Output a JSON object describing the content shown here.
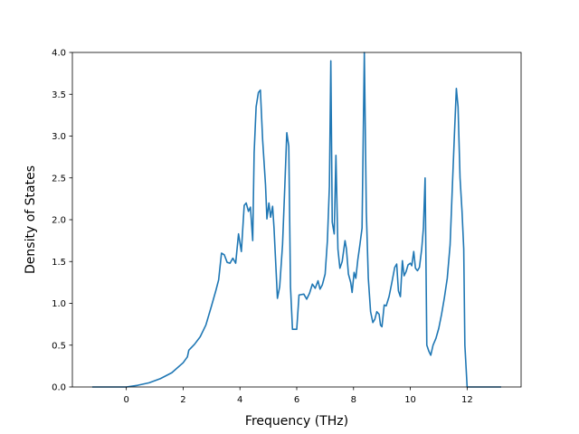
{
  "chart_data": {
    "type": "line",
    "title": "",
    "xlabel": "Frequency (THz)",
    "ylabel": "Density of States",
    "xlim": [
      -1.9,
      13.9
    ],
    "ylim": [
      0.0,
      4.0
    ],
    "x_ticks": [
      0,
      2,
      4,
      6,
      8,
      10,
      12
    ],
    "y_ticks": [
      0.0,
      0.5,
      1.0,
      1.5,
      2.0,
      2.5,
      3.0,
      3.5,
      4.0
    ],
    "x_tick_labels": [
      "0",
      "2",
      "4",
      "6",
      "8",
      "10",
      "12"
    ],
    "y_tick_labels": [
      "0.0",
      "0.5",
      "1.0",
      "1.5",
      "2.0",
      "2.5",
      "3.0",
      "3.5",
      "4.0"
    ],
    "grid": false,
    "legend": "none",
    "series": [
      {
        "color": "#1f77b4",
        "points": [
          [
            -1.2,
            0.0
          ],
          [
            0.0,
            0.0
          ],
          [
            0.4,
            0.02
          ],
          [
            0.8,
            0.05
          ],
          [
            1.2,
            0.1
          ],
          [
            1.6,
            0.17
          ],
          [
            2.0,
            0.29
          ],
          [
            2.15,
            0.36
          ],
          [
            2.2,
            0.44
          ],
          [
            2.4,
            0.51
          ],
          [
            2.6,
            0.6
          ],
          [
            2.8,
            0.74
          ],
          [
            3.0,
            0.97
          ],
          [
            3.15,
            1.15
          ],
          [
            3.25,
            1.28
          ],
          [
            3.35,
            1.6
          ],
          [
            3.45,
            1.58
          ],
          [
            3.55,
            1.49
          ],
          [
            3.65,
            1.48
          ],
          [
            3.75,
            1.54
          ],
          [
            3.85,
            1.48
          ],
          [
            3.95,
            1.83
          ],
          [
            4.05,
            1.62
          ],
          [
            4.15,
            2.17
          ],
          [
            4.22,
            2.2
          ],
          [
            4.3,
            2.1
          ],
          [
            4.37,
            2.15
          ],
          [
            4.45,
            1.75
          ],
          [
            4.5,
            2.8
          ],
          [
            4.57,
            3.35
          ],
          [
            4.65,
            3.52
          ],
          [
            4.72,
            3.55
          ],
          [
            4.8,
            2.95
          ],
          [
            4.9,
            2.42
          ],
          [
            4.95,
            2.01
          ],
          [
            5.02,
            2.2
          ],
          [
            5.08,
            2.03
          ],
          [
            5.15,
            2.16
          ],
          [
            5.2,
            1.9
          ],
          [
            5.25,
            1.55
          ],
          [
            5.32,
            1.06
          ],
          [
            5.4,
            1.2
          ],
          [
            5.5,
            1.7
          ],
          [
            5.58,
            2.4
          ],
          [
            5.65,
            3.04
          ],
          [
            5.72,
            2.88
          ],
          [
            5.78,
            1.2
          ],
          [
            5.85,
            0.69
          ],
          [
            6.0,
            0.69
          ],
          [
            6.08,
            1.1
          ],
          [
            6.25,
            1.11
          ],
          [
            6.35,
            1.05
          ],
          [
            6.45,
            1.12
          ],
          [
            6.55,
            1.23
          ],
          [
            6.65,
            1.18
          ],
          [
            6.75,
            1.27
          ],
          [
            6.82,
            1.17
          ],
          [
            6.9,
            1.22
          ],
          [
            7.0,
            1.35
          ],
          [
            7.08,
            1.75
          ],
          [
            7.15,
            2.4
          ],
          [
            7.2,
            3.9
          ],
          [
            7.25,
            1.97
          ],
          [
            7.32,
            1.83
          ],
          [
            7.38,
            2.77
          ],
          [
            7.45,
            1.65
          ],
          [
            7.52,
            1.42
          ],
          [
            7.6,
            1.5
          ],
          [
            7.7,
            1.75
          ],
          [
            7.75,
            1.65
          ],
          [
            7.82,
            1.35
          ],
          [
            7.9,
            1.25
          ],
          [
            7.95,
            1.13
          ],
          [
            8.02,
            1.37
          ],
          [
            8.08,
            1.3
          ],
          [
            8.15,
            1.52
          ],
          [
            8.22,
            1.69
          ],
          [
            8.3,
            1.9
          ],
          [
            8.38,
            4.0
          ],
          [
            8.45,
            2.1
          ],
          [
            8.52,
            1.3
          ],
          [
            8.6,
            0.9
          ],
          [
            8.68,
            0.77
          ],
          [
            8.75,
            0.81
          ],
          [
            8.82,
            0.9
          ],
          [
            8.9,
            0.87
          ],
          [
            8.95,
            0.74
          ],
          [
            9.0,
            0.72
          ],
          [
            9.08,
            0.98
          ],
          [
            9.15,
            0.97
          ],
          [
            9.25,
            1.08
          ],
          [
            9.35,
            1.25
          ],
          [
            9.45,
            1.43
          ],
          [
            9.52,
            1.47
          ],
          [
            9.58,
            1.15
          ],
          [
            9.65,
            1.08
          ],
          [
            9.72,
            1.51
          ],
          [
            9.78,
            1.33
          ],
          [
            9.85,
            1.38
          ],
          [
            9.92,
            1.46
          ],
          [
            10.0,
            1.48
          ],
          [
            10.05,
            1.45
          ],
          [
            10.12,
            1.62
          ],
          [
            10.18,
            1.42
          ],
          [
            10.25,
            1.39
          ],
          [
            10.32,
            1.43
          ],
          [
            10.4,
            1.65
          ],
          [
            10.46,
            1.9
          ],
          [
            10.52,
            2.5
          ],
          [
            10.58,
            0.5
          ],
          [
            10.65,
            0.43
          ],
          [
            10.72,
            0.38
          ],
          [
            10.8,
            0.5
          ],
          [
            10.9,
            0.58
          ],
          [
            11.0,
            0.7
          ],
          [
            11.1,
            0.87
          ],
          [
            11.2,
            1.07
          ],
          [
            11.3,
            1.3
          ],
          [
            11.4,
            1.7
          ],
          [
            11.48,
            2.4
          ],
          [
            11.55,
            3.0
          ],
          [
            11.62,
            3.57
          ],
          [
            11.68,
            3.35
          ],
          [
            11.75,
            2.5
          ],
          [
            11.82,
            2.1
          ],
          [
            11.88,
            1.65
          ],
          [
            11.92,
            0.5
          ],
          [
            12.0,
            0.0
          ],
          [
            13.2,
            0.0
          ]
        ]
      }
    ]
  }
}
